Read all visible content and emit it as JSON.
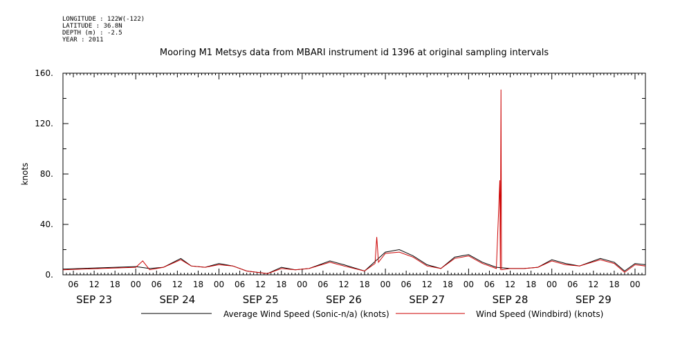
{
  "header": {
    "meta_lines": [
      "LONGITUDE : 122W(-122)",
      "LATITUDE : 36.8N",
      "DEPTH (m) : -2.5",
      "YEAR : 2011"
    ]
  },
  "chart_data": {
    "type": "line",
    "title": "Mooring M1 Metsys data from MBARI instrument id 1396 at original sampling intervals",
    "xlabel": "",
    "ylabel": "knots",
    "year": 2011,
    "xlim": [
      "2011-09-23T03:00",
      "2011-09-30T03:00"
    ],
    "ylim": [
      0,
      160
    ],
    "y_ticks": [
      0,
      40,
      80,
      120,
      160
    ],
    "y_tick_labels": [
      "0.",
      "40.",
      "80.",
      "120.",
      "160."
    ],
    "x_ticks": [
      {
        "t": "2011-09-23T06:00",
        "label": "06"
      },
      {
        "t": "2011-09-23T12:00",
        "label": "12"
      },
      {
        "t": "2011-09-23T18:00",
        "label": "18"
      },
      {
        "t": "2011-09-24T00:00",
        "label": "00"
      },
      {
        "t": "2011-09-24T06:00",
        "label": "06"
      },
      {
        "t": "2011-09-24T12:00",
        "label": "12"
      },
      {
        "t": "2011-09-24T18:00",
        "label": "18"
      },
      {
        "t": "2011-09-25T00:00",
        "label": "00"
      },
      {
        "t": "2011-09-25T06:00",
        "label": "06"
      },
      {
        "t": "2011-09-25T12:00",
        "label": "12"
      },
      {
        "t": "2011-09-25T18:00",
        "label": "18"
      },
      {
        "t": "2011-09-26T00:00",
        "label": "00"
      },
      {
        "t": "2011-09-26T06:00",
        "label": "06"
      },
      {
        "t": "2011-09-26T12:00",
        "label": "12"
      },
      {
        "t": "2011-09-26T18:00",
        "label": "18"
      },
      {
        "t": "2011-09-27T00:00",
        "label": "00"
      },
      {
        "t": "2011-09-27T06:00",
        "label": "06"
      },
      {
        "t": "2011-09-27T12:00",
        "label": "12"
      },
      {
        "t": "2011-09-27T18:00",
        "label": "18"
      },
      {
        "t": "2011-09-28T00:00",
        "label": "00"
      },
      {
        "t": "2011-09-28T06:00",
        "label": "06"
      },
      {
        "t": "2011-09-28T12:00",
        "label": "12"
      },
      {
        "t": "2011-09-28T18:00",
        "label": "18"
      },
      {
        "t": "2011-09-29T00:00",
        "label": "00"
      },
      {
        "t": "2011-09-29T06:00",
        "label": "06"
      },
      {
        "t": "2011-09-29T12:00",
        "label": "12"
      },
      {
        "t": "2011-09-29T18:00",
        "label": "18"
      },
      {
        "t": "2011-09-30T00:00",
        "label": "00"
      }
    ],
    "day_labels": [
      {
        "t": "2011-09-23T12:00",
        "label": "SEP 23"
      },
      {
        "t": "2011-09-24T12:00",
        "label": "SEP 24"
      },
      {
        "t": "2011-09-25T12:00",
        "label": "SEP 25"
      },
      {
        "t": "2011-09-26T12:00",
        "label": "SEP 26"
      },
      {
        "t": "2011-09-27T12:00",
        "label": "SEP 27"
      },
      {
        "t": "2011-09-28T12:00",
        "label": "SEP 28"
      },
      {
        "t": "2011-09-29T12:00",
        "label": "SEP 29"
      }
    ],
    "grid": false,
    "legend": "bottom",
    "series": [
      {
        "name": "Average Wind Speed (Sonic-n/a) (knots)",
        "color": "#000000",
        "points": [
          [
            "2011-09-23T03:00",
            4.5
          ],
          [
            "2011-09-24T00:00",
            6.5
          ],
          [
            "2011-09-24T04:00",
            5
          ],
          [
            "2011-09-24T08:00",
            6
          ],
          [
            "2011-09-24T13:00",
            13
          ],
          [
            "2011-09-24T16:00",
            7
          ],
          [
            "2011-09-24T20:00",
            6
          ],
          [
            "2011-09-25T00:00",
            9
          ],
          [
            "2011-09-25T04:00",
            7
          ],
          [
            "2011-09-25T08:00",
            3
          ],
          [
            "2011-09-25T14:00",
            1
          ],
          [
            "2011-09-25T18:00",
            6
          ],
          [
            "2011-09-25T22:00",
            4
          ],
          [
            "2011-09-26T02:00",
            5
          ],
          [
            "2011-09-26T08:00",
            11
          ],
          [
            "2011-09-26T12:00",
            8
          ],
          [
            "2011-09-26T18:00",
            3
          ],
          [
            "2011-09-27T00:00",
            18
          ],
          [
            "2011-09-27T04:00",
            20
          ],
          [
            "2011-09-27T08:00",
            15
          ],
          [
            "2011-09-27T12:00",
            8
          ],
          [
            "2011-09-27T16:00",
            5
          ],
          [
            "2011-09-27T20:00",
            14
          ],
          [
            "2011-09-28T00:00",
            16
          ],
          [
            "2011-09-28T04:00",
            10
          ],
          [
            "2011-09-28T08:00",
            6
          ],
          [
            "2011-09-28T12:00",
            5
          ],
          [
            "2011-09-28T16:00",
            5
          ],
          [
            "2011-09-28T20:00",
            6
          ],
          [
            "2011-09-29T00:00",
            12
          ],
          [
            "2011-09-29T04:00",
            9
          ],
          [
            "2011-09-29T08:00",
            7
          ],
          [
            "2011-09-29T14:00",
            13
          ],
          [
            "2011-09-29T18:00",
            10
          ],
          [
            "2011-09-29T21:00",
            3
          ],
          [
            "2011-09-30T00:00",
            9
          ],
          [
            "2011-09-30T03:00",
            8
          ]
        ]
      },
      {
        "name": "Wind Speed (Windbird) (knots)",
        "color": "#cc0000",
        "points": [
          [
            "2011-09-23T03:00",
            4
          ],
          [
            "2011-09-24T00:00",
            6
          ],
          [
            "2011-09-24T02:00",
            11
          ],
          [
            "2011-09-24T04:00",
            4
          ],
          [
            "2011-09-24T08:00",
            6
          ],
          [
            "2011-09-24T13:00",
            12
          ],
          [
            "2011-09-24T16:00",
            7
          ],
          [
            "2011-09-24T20:00",
            6
          ],
          [
            "2011-09-25T00:00",
            8
          ],
          [
            "2011-09-25T04:00",
            7
          ],
          [
            "2011-09-25T08:00",
            3
          ],
          [
            "2011-09-25T14:00",
            1
          ],
          [
            "2011-09-25T18:00",
            5
          ],
          [
            "2011-09-25T22:00",
            4
          ],
          [
            "2011-09-26T02:00",
            5
          ],
          [
            "2011-09-26T08:00",
            10
          ],
          [
            "2011-09-26T12:00",
            7
          ],
          [
            "2011-09-26T18:00",
            3
          ],
          [
            "2011-09-26T21:00",
            9
          ],
          [
            "2011-09-26T21:30",
            30
          ],
          [
            "2011-09-26T22:00",
            10
          ],
          [
            "2011-09-27T00:00",
            17
          ],
          [
            "2011-09-27T04:00",
            18
          ],
          [
            "2011-09-27T08:00",
            14
          ],
          [
            "2011-09-27T12:00",
            7
          ],
          [
            "2011-09-27T16:00",
            5
          ],
          [
            "2011-09-27T20:00",
            13
          ],
          [
            "2011-09-28T00:00",
            15
          ],
          [
            "2011-09-28T04:00",
            9
          ],
          [
            "2011-09-28T08:00",
            5
          ],
          [
            "2011-09-28T09:00",
            75
          ],
          [
            "2011-09-28T09:10",
            4
          ],
          [
            "2011-09-28T09:20",
            147
          ],
          [
            "2011-09-28T09:30",
            4
          ],
          [
            "2011-09-28T12:00",
            5
          ],
          [
            "2011-09-28T16:00",
            5
          ],
          [
            "2011-09-28T20:00",
            6
          ],
          [
            "2011-09-29T00:00",
            11
          ],
          [
            "2011-09-29T04:00",
            8
          ],
          [
            "2011-09-29T08:00",
            7
          ],
          [
            "2011-09-29T14:00",
            12
          ],
          [
            "2011-09-29T18:00",
            9
          ],
          [
            "2011-09-29T21:00",
            2
          ],
          [
            "2011-09-30T00:00",
            8
          ],
          [
            "2011-09-30T03:00",
            7
          ]
        ]
      }
    ]
  }
}
